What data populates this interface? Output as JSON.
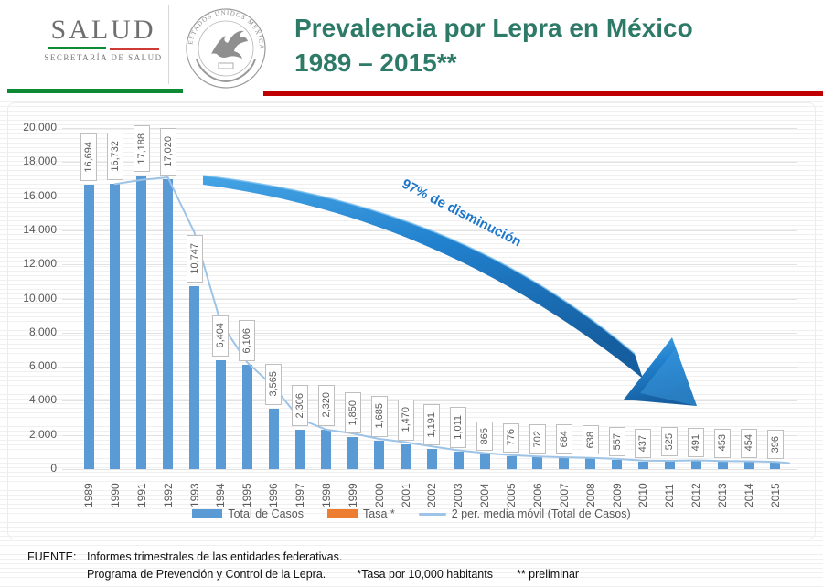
{
  "header": {
    "logo_name": "SALUD",
    "logo_subtitle": "SECRETARÍA DE SALUD",
    "seal_ring_text": "ESTADOS UNIDOS MEXICANOS",
    "title_line1": "Prevalencia por Lepra en México",
    "title_line2": "1989 – 2015**",
    "colors": {
      "title": "#2e7a68",
      "accent_green": "#0e8a34",
      "accent_red": "#c00000"
    }
  },
  "annotation": {
    "text": "97% de disminución",
    "color": "#1d76c9"
  },
  "chart_data": {
    "type": "bar",
    "title": "",
    "xlabel": "",
    "ylabel": "",
    "categories": [
      "1989",
      "1990",
      "1991",
      "1992",
      "1993",
      "1994",
      "1995",
      "1996",
      "1997",
      "1998",
      "1999",
      "2000",
      "2001",
      "2002",
      "2003",
      "2004",
      "2005",
      "2006",
      "2007",
      "2008",
      "2009",
      "2010",
      "2011",
      "2012",
      "2013",
      "2014",
      "2015"
    ],
    "series": [
      {
        "name": "Total de Casos",
        "type": "bar",
        "color": "#5b9bd5",
        "values": [
          16694,
          16732,
          17188,
          17020,
          10747,
          6404,
          6106,
          3565,
          2306,
          2320,
          1850,
          1685,
          1470,
          1191,
          1011,
          865,
          776,
          702,
          684,
          638,
          557,
          437,
          525,
          491,
          453,
          454,
          396
        ]
      },
      {
        "name": "Tasa *",
        "type": "bar",
        "color": "#ed7d31",
        "values": []
      },
      {
        "name": "2 per. media móvil (Total de Casos)",
        "type": "line",
        "color": "#9dc3e6",
        "derived_from": "2-period moving average of Total de Casos"
      }
    ],
    "ylim": [
      0,
      20000
    ],
    "ytick_step": 2000,
    "yticks": [
      "0",
      "2,000",
      "4,000",
      "6,000",
      "8,000",
      "10,000",
      "12,000",
      "14,000",
      "16,000",
      "18,000",
      "20,000"
    ],
    "grid": true,
    "legend_position": "bottom",
    "data_labels": "rotated 90°, boxed, comma-formatted"
  },
  "footer": {
    "source_label": "FUENTE:",
    "source_line1": "Informes trimestrales de las entidades federativas.",
    "source_line2": "Programa de Prevención y Control de la Lepra.",
    "note_tasa": "*Tasa por 10,000 habitants",
    "note_preliminar": "** preliminar"
  }
}
